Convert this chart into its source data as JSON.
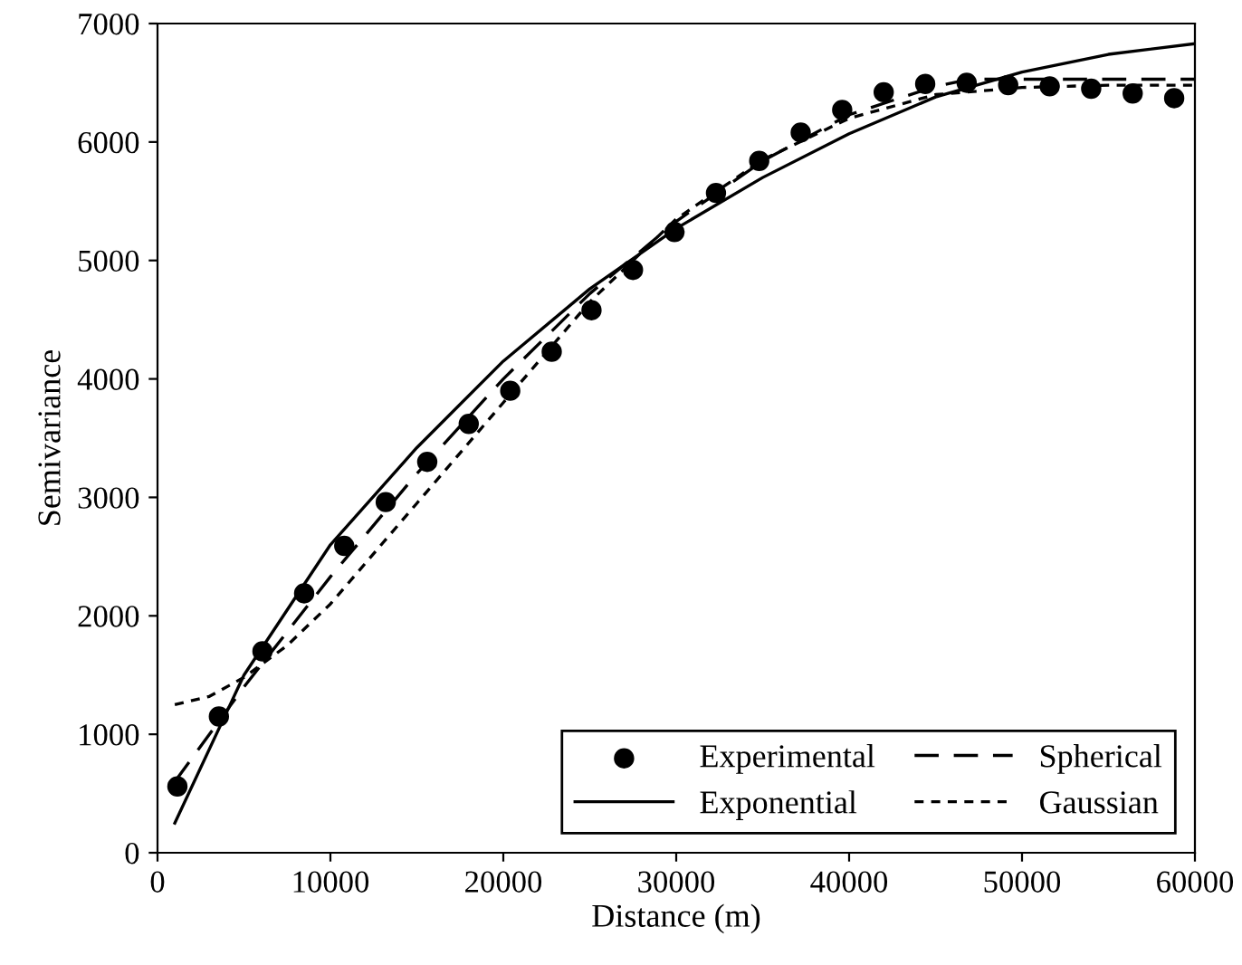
{
  "chart_data": {
    "type": "scatter",
    "xlabel": "Distance (m)",
    "ylabel": "Semivariance",
    "xlim": [
      0,
      60000
    ],
    "ylim": [
      0,
      7000
    ],
    "xticks": [
      0,
      10000,
      20000,
      30000,
      40000,
      50000,
      60000
    ],
    "yticks": [
      0,
      1000,
      2000,
      3000,
      4000,
      5000,
      6000,
      7000
    ],
    "grid": false,
    "legend": "bottom right",
    "series": [
      {
        "name": "Experimental",
        "marker": "circle",
        "color": "#000000",
        "x": [
          1150,
          3550,
          6070,
          8480,
          10800,
          13200,
          15600,
          18000,
          20400,
          22800,
          25100,
          27500,
          29900,
          32300,
          34800,
          37200,
          39600,
          42000,
          44400,
          46800,
          49200,
          51600,
          54000,
          56400,
          58800
        ],
        "values": [
          560,
          1150,
          1700,
          2190,
          2590,
          2960,
          3300,
          3620,
          3900,
          4230,
          4580,
          4920,
          5240,
          5570,
          5840,
          6080,
          6270,
          6420,
          6490,
          6500,
          6480,
          6470,
          6450,
          6410,
          6370
        ]
      },
      {
        "name": "Spherical",
        "type": "line",
        "line_style": "dashed",
        "color": "#000000",
        "x": [
          1000,
          5000,
          10000,
          15000,
          20000,
          25000,
          30000,
          35000,
          40000,
          45000,
          47000,
          50000,
          55000,
          60000
        ],
        "values": [
          600,
          1400,
          2330,
          3200,
          4000,
          4720,
          5330,
          5840,
          6230,
          6470,
          6530,
          6530,
          6530,
          6530
        ]
      },
      {
        "name": "Exponential",
        "type": "line",
        "line_style": "solid",
        "color": "#000000",
        "x": [
          1000,
          5000,
          10000,
          15000,
          20000,
          25000,
          30000,
          35000,
          40000,
          45000,
          50000,
          55000,
          60000
        ],
        "values": [
          250,
          1500,
          2600,
          3420,
          4150,
          4760,
          5270,
          5700,
          6070,
          6380,
          6590,
          6740,
          6830
        ]
      },
      {
        "name": "Gaussian",
        "type": "line",
        "line_style": "dotted",
        "color": "#000000",
        "x": [
          1000,
          3000,
          5000,
          7500,
          10000,
          15000,
          20000,
          25000,
          30000,
          35000,
          40000,
          45000,
          50000,
          55000,
          60000
        ],
        "values": [
          1250,
          1320,
          1480,
          1750,
          2100,
          2950,
          3800,
          4650,
          5350,
          5850,
          6200,
          6400,
          6460,
          6480,
          6480
        ]
      }
    ]
  }
}
